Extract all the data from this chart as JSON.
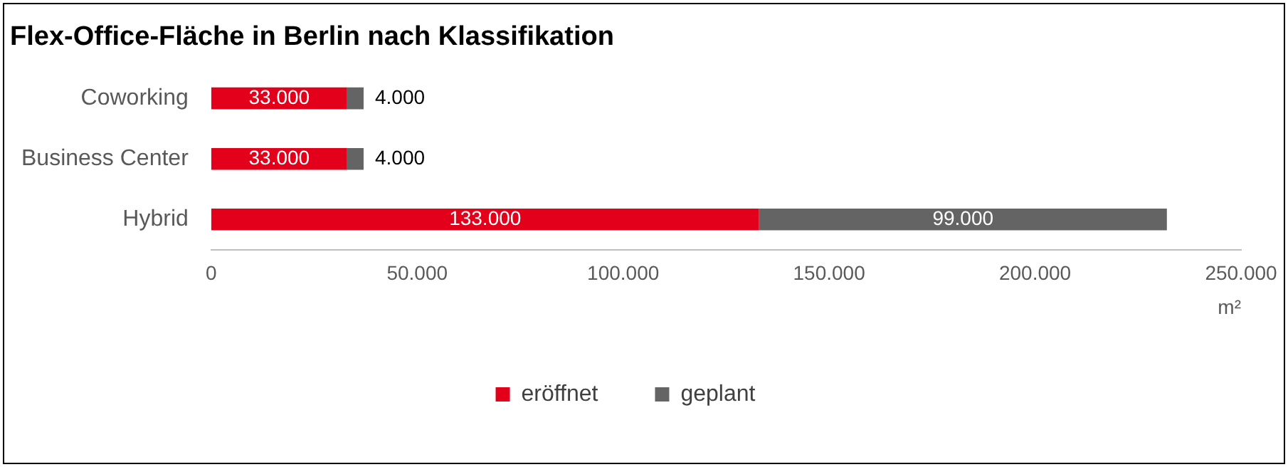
{
  "chart_data": {
    "type": "bar",
    "orientation": "horizontal",
    "stacked": true,
    "title": "Flex-Office-Fläche in Berlin nach Klassifikation",
    "xlabel": "m²",
    "categories": [
      "Coworking",
      "Business Center",
      "Hybrid"
    ],
    "series": [
      {
        "name": "eröffnet",
        "color": "#e2001a",
        "values": [
          33000,
          33000,
          133000
        ],
        "value_labels": [
          "33.000",
          "33.000",
          "133.000"
        ]
      },
      {
        "name": "geplant",
        "color": "#646464",
        "values": [
          4000,
          4000,
          99000
        ],
        "value_labels": [
          "4.000",
          "4.000",
          "99.000"
        ]
      }
    ],
    "xlim": [
      0,
      250000
    ],
    "xticks": [
      {
        "value": 0,
        "label": "0"
      },
      {
        "value": 50000,
        "label": "50.000"
      },
      {
        "value": 100000,
        "label": "100.000"
      },
      {
        "value": 150000,
        "label": "150.000"
      },
      {
        "value": 200000,
        "label": "200.000"
      },
      {
        "value": 250000,
        "label": "250.000"
      }
    ],
    "grid": false,
    "legend": "bottom"
  }
}
